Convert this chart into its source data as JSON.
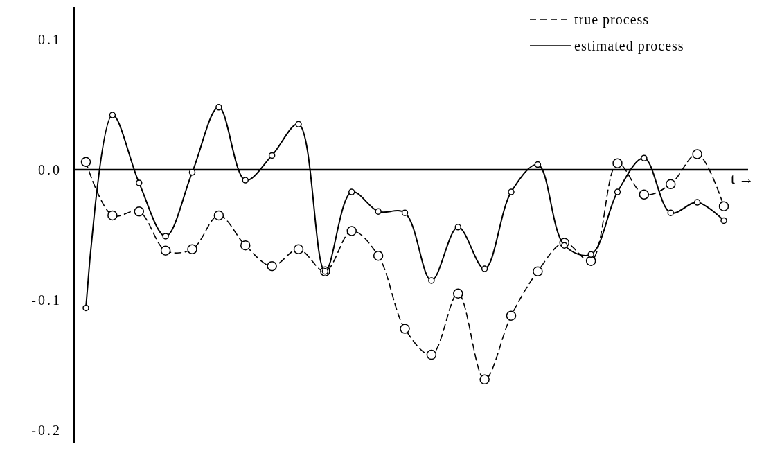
{
  "chart_data": {
    "type": "line",
    "xlabel": "t →",
    "categories": [
      null,
      null,
      null,
      null,
      null,
      null,
      null,
      null,
      null,
      null,
      null,
      null,
      null,
      null,
      null,
      null,
      null,
      null,
      null,
      null,
      null,
      null,
      null,
      null,
      null
    ],
    "series": [
      {
        "name": "true process",
        "color": "#000000",
        "line_style": "dashed",
        "values": [
          0.006,
          -0.035,
          -0.032,
          -0.062,
          -0.061,
          -0.035,
          -0.058,
          -0.074,
          -0.061,
          -0.078,
          -0.047,
          -0.066,
          -0.122,
          -0.142,
          -0.095,
          -0.161,
          -0.112,
          -0.078,
          -0.056,
          -0.07,
          0.005,
          -0.019,
          -0.011,
          0.012,
          -0.028
        ]
      },
      {
        "name": "estimated process",
        "color": "#000000",
        "line_style": "solid",
        "values": [
          -0.106,
          0.042,
          -0.01,
          -0.051,
          -0.002,
          0.048,
          -0.008,
          0.011,
          0.035,
          -0.078,
          -0.017,
          -0.032,
          -0.033,
          -0.085,
          -0.044,
          -0.076,
          -0.017,
          0.004,
          -0.058,
          -0.065,
          -0.017,
          0.009,
          -0.033,
          -0.025,
          -0.039
        ]
      }
    ],
    "ylim": [
      -0.21,
      0.125
    ],
    "yticks": [
      0.1,
      {
        "value": 0,
        "label": "0.0"
      },
      -0.1,
      -0.2
    ],
    "marker": "circle",
    "legend": "top right"
  }
}
